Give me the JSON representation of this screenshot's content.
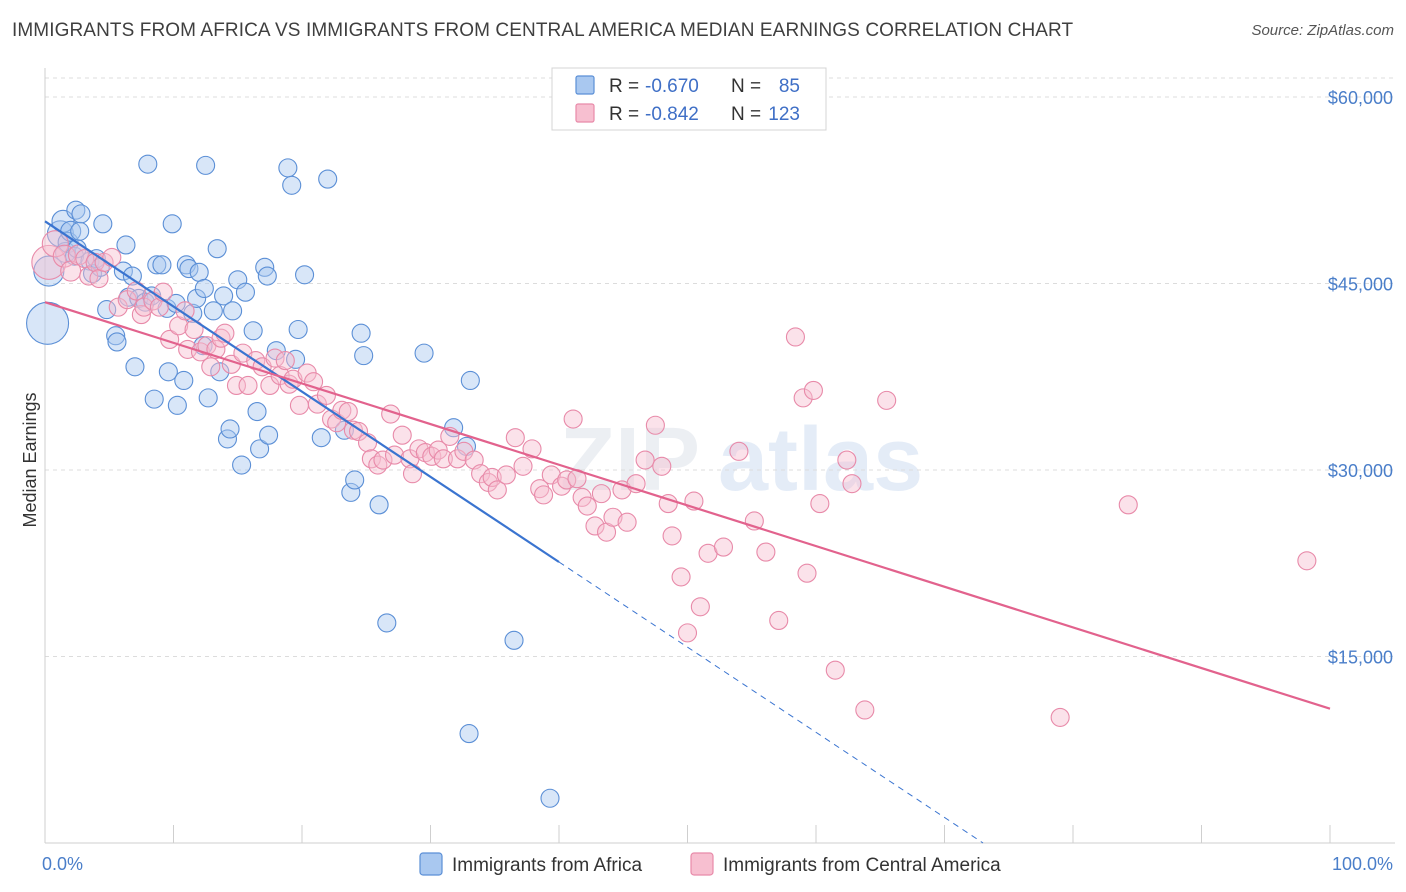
{
  "title": "IMMIGRANTS FROM AFRICA VS IMMIGRANTS FROM CENTRAL AMERICA MEDIAN EARNINGS CORRELATION CHART",
  "source": "Source: ZipAtlas.com",
  "watermark": {
    "part1": "ZIP",
    "part2": "atlas"
  },
  "colors": {
    "africa_fill": "#a9c8f0",
    "africa_stroke": "#5b8fd6",
    "africa_line": "#3a74d0",
    "central_fill": "#f7bfd0",
    "central_stroke": "#e88aa9",
    "central_line": "#e2628d",
    "grid": "#dcdcdc",
    "tick_label": "#4a7ec9"
  },
  "legend": {
    "rows": [
      {
        "r_label": "R =",
        "r_value": "-0.670",
        "n_label": "N =",
        "n_value": "85"
      },
      {
        "r_label": "R =",
        "r_value": "-0.842",
        "n_label": "N =",
        "n_value": "123"
      }
    ]
  },
  "chart_data": {
    "type": "scatter",
    "title": "IMMIGRANTS FROM AFRICA VS IMMIGRANTS FROM CENTRAL AMERICA MEDIAN EARNINGS CORRELATION CHART",
    "xlabel": "",
    "ylabel": "Median Earnings",
    "xlim": [
      0,
      100
    ],
    "ylim": [
      0,
      63000
    ],
    "x_tick_labels": [
      "0.0%",
      "100.0%"
    ],
    "y_ticks": [
      {
        "value": 15000,
        "label": "$15,000"
      },
      {
        "value": 30000,
        "label": "$30,000"
      },
      {
        "value": 45000,
        "label": "$45,000"
      },
      {
        "value": 60000,
        "label": "$60,000"
      }
    ],
    "series": [
      {
        "name": "Immigrants from Africa",
        "r": -0.67,
        "n": 85,
        "trend": {
          "x0": 0,
          "y0": 50000,
          "x1": 40,
          "y1": 22600,
          "dash_to_x": 73,
          "dash_to_y": 0
        },
        "points": [
          [
            0.2,
            41800,
            20
          ],
          [
            0.3,
            46000,
            14
          ],
          [
            1.2,
            49000,
            12
          ],
          [
            1.4,
            50000,
            10
          ],
          [
            1.6,
            47500,
            9
          ],
          [
            1.8,
            48300,
            9
          ],
          [
            2.0,
            49200,
            9
          ],
          [
            2.3,
            47200,
            8
          ],
          [
            2.5,
            47800,
            8
          ],
          [
            2.7,
            49200,
            8
          ],
          [
            2.4,
            50900,
            8
          ],
          [
            2.8,
            50600,
            8
          ],
          [
            3.5,
            46800,
            8
          ],
          [
            3.7,
            45800,
            8
          ],
          [
            4.0,
            47000,
            8
          ],
          [
            4.3,
            46300,
            8
          ],
          [
            4.5,
            49800,
            8
          ],
          [
            4.8,
            42900,
            8
          ],
          [
            5.5,
            40800,
            8
          ],
          [
            5.6,
            40300,
            8
          ],
          [
            6.1,
            46000,
            8
          ],
          [
            6.3,
            48100,
            8
          ],
          [
            6.5,
            43900,
            8
          ],
          [
            6.8,
            45600,
            8
          ],
          [
            7.0,
            38300,
            8
          ],
          [
            7.3,
            43800,
            8
          ],
          [
            7.8,
            43500,
            8
          ],
          [
            8.3,
            44000,
            8
          ],
          [
            8.0,
            54600,
            8
          ],
          [
            8.5,
            35700,
            8
          ],
          [
            8.7,
            46500,
            8
          ],
          [
            9.1,
            46500,
            8
          ],
          [
            9.5,
            43000,
            8
          ],
          [
            9.6,
            37900,
            8
          ],
          [
            9.9,
            49800,
            8
          ],
          [
            10.2,
            43400,
            8
          ],
          [
            10.3,
            35200,
            8
          ],
          [
            10.8,
            37200,
            8
          ],
          [
            11.0,
            46500,
            8
          ],
          [
            11.2,
            46200,
            8
          ],
          [
            11.5,
            42600,
            8
          ],
          [
            11.8,
            43800,
            8
          ],
          [
            12.0,
            45900,
            8
          ],
          [
            12.3,
            40000,
            8
          ],
          [
            12.4,
            44600,
            8
          ],
          [
            12.5,
            54500,
            8
          ],
          [
            12.7,
            35800,
            8
          ],
          [
            13.1,
            42800,
            8
          ],
          [
            13.4,
            47800,
            8
          ],
          [
            13.6,
            37900,
            8
          ],
          [
            13.9,
            44000,
            8
          ],
          [
            14.2,
            32500,
            8
          ],
          [
            14.4,
            33300,
            8
          ],
          [
            14.6,
            42800,
            8
          ],
          [
            15.0,
            45300,
            8
          ],
          [
            15.3,
            30400,
            8
          ],
          [
            15.6,
            44300,
            8
          ],
          [
            16.2,
            41200,
            8
          ],
          [
            16.5,
            34700,
            8
          ],
          [
            16.7,
            31700,
            8
          ],
          [
            17.1,
            46300,
            8
          ],
          [
            17.3,
            45600,
            8
          ],
          [
            17.4,
            32800,
            8
          ],
          [
            18.0,
            39600,
            8
          ],
          [
            18.9,
            54300,
            8
          ],
          [
            19.2,
            52900,
            8
          ],
          [
            19.5,
            38900,
            8
          ],
          [
            19.7,
            41300,
            8
          ],
          [
            20.2,
            45700,
            8
          ],
          [
            21.5,
            32600,
            8
          ],
          [
            22.0,
            53400,
            8
          ],
          [
            23.3,
            33200,
            8
          ],
          [
            23.8,
            28200,
            8
          ],
          [
            24.1,
            29200,
            8
          ],
          [
            24.6,
            41000,
            8
          ],
          [
            24.8,
            39200,
            8
          ],
          [
            26.0,
            27200,
            8
          ],
          [
            26.6,
            17700,
            8
          ],
          [
            29.5,
            39400,
            8
          ],
          [
            32.8,
            31900,
            8
          ],
          [
            33.1,
            37200,
            8
          ],
          [
            33.0,
            8800,
            8
          ],
          [
            36.5,
            16300,
            8
          ],
          [
            39.3,
            3600,
            8
          ],
          [
            31.8,
            33400,
            8
          ]
        ]
      },
      {
        "name": "Immigrants from Central America",
        "r": -0.842,
        "n": 123,
        "trend": {
          "x0": 0,
          "y0": 43500,
          "x1": 100,
          "y1": 10800
        },
        "points": [
          [
            0.3,
            46700,
            16
          ],
          [
            0.8,
            48200,
            12
          ],
          [
            1.5,
            47200,
            10
          ],
          [
            2.0,
            46000,
            9
          ],
          [
            2.6,
            47300,
            9
          ],
          [
            3.1,
            47000,
            8
          ],
          [
            3.4,
            45600,
            8
          ],
          [
            3.9,
            46700,
            8
          ],
          [
            4.2,
            45400,
            8
          ],
          [
            4.6,
            46700,
            8
          ],
          [
            5.2,
            47100,
            8
          ],
          [
            5.7,
            43100,
            8
          ],
          [
            6.4,
            43700,
            8
          ],
          [
            7.1,
            44400,
            8
          ],
          [
            7.5,
            42500,
            8
          ],
          [
            7.7,
            43100,
            8
          ],
          [
            8.4,
            43600,
            8
          ],
          [
            8.9,
            43100,
            8
          ],
          [
            9.2,
            44300,
            8
          ],
          [
            9.7,
            40500,
            8
          ],
          [
            10.4,
            41600,
            8
          ],
          [
            10.9,
            42800,
            8
          ],
          [
            11.1,
            39700,
            8
          ],
          [
            11.6,
            41300,
            8
          ],
          [
            12.1,
            39500,
            8
          ],
          [
            12.6,
            40000,
            8
          ],
          [
            12.9,
            38300,
            8
          ],
          [
            13.3,
            39700,
            8
          ],
          [
            13.7,
            40600,
            8
          ],
          [
            14.0,
            41000,
            8
          ],
          [
            14.5,
            38500,
            8
          ],
          [
            14.9,
            36800,
            8
          ],
          [
            15.4,
            39400,
            8
          ],
          [
            15.8,
            36800,
            8
          ],
          [
            16.4,
            38800,
            8
          ],
          [
            16.9,
            38300,
            8
          ],
          [
            17.5,
            36800,
            8
          ],
          [
            17.9,
            39000,
            8
          ],
          [
            18.3,
            37600,
            8
          ],
          [
            18.7,
            38800,
            8
          ],
          [
            19.0,
            36900,
            8
          ],
          [
            19.3,
            37300,
            8
          ],
          [
            19.8,
            35200,
            8
          ],
          [
            20.4,
            37800,
            8
          ],
          [
            20.9,
            37100,
            8
          ],
          [
            21.2,
            35300,
            8
          ],
          [
            21.9,
            36000,
            8
          ],
          [
            22.3,
            34100,
            8
          ],
          [
            22.7,
            33800,
            8
          ],
          [
            23.1,
            34800,
            8
          ],
          [
            23.6,
            34700,
            8
          ],
          [
            24.0,
            33200,
            8
          ],
          [
            24.4,
            33100,
            8
          ],
          [
            25.1,
            32200,
            8
          ],
          [
            25.4,
            30900,
            8
          ],
          [
            25.9,
            30400,
            8
          ],
          [
            26.3,
            30800,
            8
          ],
          [
            26.9,
            34500,
            8
          ],
          [
            27.2,
            31200,
            8
          ],
          [
            27.8,
            32800,
            8
          ],
          [
            28.4,
            30900,
            8
          ],
          [
            28.6,
            29700,
            8
          ],
          [
            29.1,
            31700,
            8
          ],
          [
            29.6,
            31400,
            8
          ],
          [
            30.1,
            31100,
            8
          ],
          [
            30.6,
            31600,
            8
          ],
          [
            31.0,
            30900,
            8
          ],
          [
            31.5,
            32700,
            8
          ],
          [
            32.1,
            30900,
            8
          ],
          [
            32.6,
            31500,
            8
          ],
          [
            33.4,
            30800,
            8
          ],
          [
            33.9,
            29700,
            8
          ],
          [
            34.5,
            29000,
            8
          ],
          [
            34.8,
            29400,
            8
          ],
          [
            35.2,
            28400,
            8
          ],
          [
            35.9,
            29600,
            8
          ],
          [
            36.6,
            32600,
            8
          ],
          [
            37.2,
            30300,
            8
          ],
          [
            37.9,
            31700,
            8
          ],
          [
            38.5,
            28500,
            8
          ],
          [
            38.8,
            28000,
            8
          ],
          [
            39.4,
            29600,
            8
          ],
          [
            40.2,
            28700,
            8
          ],
          [
            40.6,
            29200,
            8
          ],
          [
            41.1,
            34100,
            8
          ],
          [
            41.4,
            29300,
            8
          ],
          [
            41.8,
            27800,
            8
          ],
          [
            42.2,
            27100,
            8
          ],
          [
            42.8,
            25500,
            8
          ],
          [
            43.3,
            28100,
            8
          ],
          [
            43.7,
            25000,
            8
          ],
          [
            44.2,
            26200,
            8
          ],
          [
            44.9,
            28400,
            8
          ],
          [
            45.3,
            25800,
            8
          ],
          [
            46.0,
            28900,
            8
          ],
          [
            46.7,
            30800,
            8
          ],
          [
            47.5,
            33600,
            8
          ],
          [
            48.0,
            30300,
            8
          ],
          [
            48.5,
            27300,
            8
          ],
          [
            48.8,
            24700,
            8
          ],
          [
            49.5,
            21400,
            8
          ],
          [
            50.0,
            16900,
            8
          ],
          [
            50.5,
            27500,
            8
          ],
          [
            51.0,
            19000,
            8
          ],
          [
            51.6,
            23300,
            8
          ],
          [
            52.8,
            23800,
            8
          ],
          [
            54.0,
            31500,
            8
          ],
          [
            55.2,
            25900,
            8
          ],
          [
            56.1,
            23400,
            8
          ],
          [
            57.1,
            17900,
            8
          ],
          [
            58.4,
            40700,
            8
          ],
          [
            59.0,
            35800,
            8
          ],
          [
            59.3,
            21700,
            8
          ],
          [
            59.8,
            36400,
            8
          ],
          [
            60.3,
            27300,
            8
          ],
          [
            62.4,
            30800,
            8
          ],
          [
            62.8,
            28900,
            8
          ],
          [
            61.5,
            13900,
            8
          ],
          [
            63.8,
            10700,
            8
          ],
          [
            65.5,
            35600,
            8
          ],
          [
            79.0,
            10100,
            8
          ],
          [
            84.3,
            27200,
            8
          ],
          [
            98.2,
            22700,
            8
          ]
        ]
      }
    ]
  },
  "bottom_legend": {
    "items": [
      "Immigrants from Africa",
      "Immigrants from Central America"
    ]
  }
}
